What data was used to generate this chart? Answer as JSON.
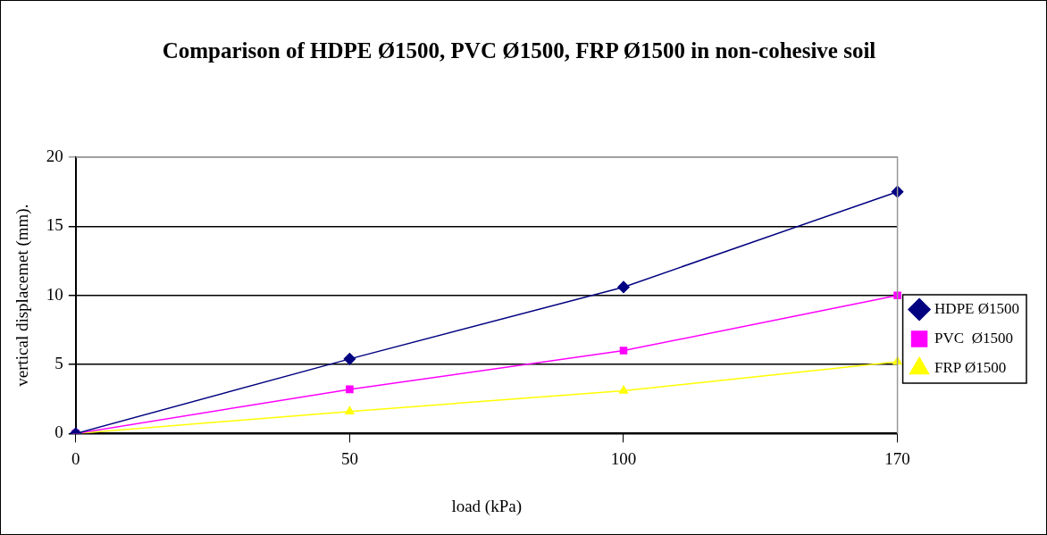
{
  "chart_data": {
    "type": "line",
    "title": "Comparison of HDPE Ø1500, PVC Ø1500, FRP Ø1500  in non-cohesive soil",
    "xlabel": "load (kPa)",
    "ylabel": "vertical displacemet (mm).",
    "categories": [
      "0",
      "50",
      "100",
      "170"
    ],
    "series": [
      {
        "name": "HDPE Ø1500",
        "color": "#000080",
        "marker": "diamond",
        "values": [
          0,
          5.4,
          10.6,
          17.5
        ]
      },
      {
        "name": "PVC  Ø1500",
        "color": "#ff00ff",
        "marker": "square",
        "values": [
          0,
          3.2,
          6.0,
          10.0
        ]
      },
      {
        "name": "FRP Ø1500",
        "color": "#ffff00",
        "marker": "triangle",
        "values": [
          0,
          1.6,
          3.1,
          5.2
        ]
      }
    ],
    "ylim": [
      0,
      20
    ],
    "yticks": [
      0,
      5,
      10,
      15,
      20
    ],
    "grid": "y",
    "legend": "right",
    "line_style": "solid"
  }
}
